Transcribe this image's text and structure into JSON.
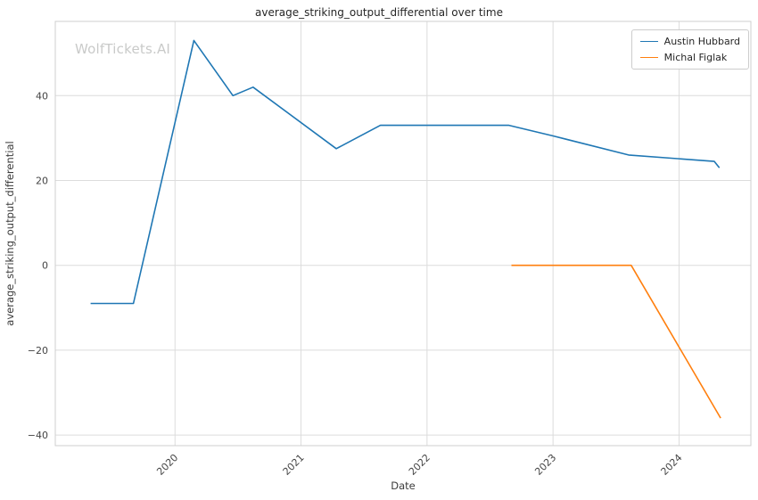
{
  "watermark": "WolfTickets.AI",
  "chart_data": {
    "type": "line",
    "title": "average_striking_output_differential over time",
    "xlabel": "Date",
    "ylabel": "average_striking_output_differential",
    "xlim": [
      2019.05,
      2024.57
    ],
    "ylim": [
      -42.5,
      57.5
    ],
    "xticks": [
      2020,
      2021,
      2022,
      2023,
      2024
    ],
    "yticks": [
      -40,
      -20,
      0,
      20,
      40
    ],
    "grid": true,
    "legend_position": "upper right",
    "series": [
      {
        "name": "Austin Hubbard",
        "color": "#1f77b4",
        "points": [
          [
            2019.33,
            -9
          ],
          [
            2019.67,
            -9
          ],
          [
            2020.15,
            53
          ],
          [
            2020.46,
            40
          ],
          [
            2020.62,
            42
          ],
          [
            2021.28,
            27.5
          ],
          [
            2021.63,
            33
          ],
          [
            2022.65,
            33
          ],
          [
            2023.0,
            30.5
          ],
          [
            2023.6,
            26
          ],
          [
            2024.28,
            24.5
          ],
          [
            2024.32,
            23
          ]
        ]
      },
      {
        "name": "Michal Figlak",
        "color": "#ff7f0e",
        "points": [
          [
            2022.67,
            0
          ],
          [
            2023.62,
            0
          ],
          [
            2024.33,
            -36
          ]
        ]
      }
    ]
  }
}
